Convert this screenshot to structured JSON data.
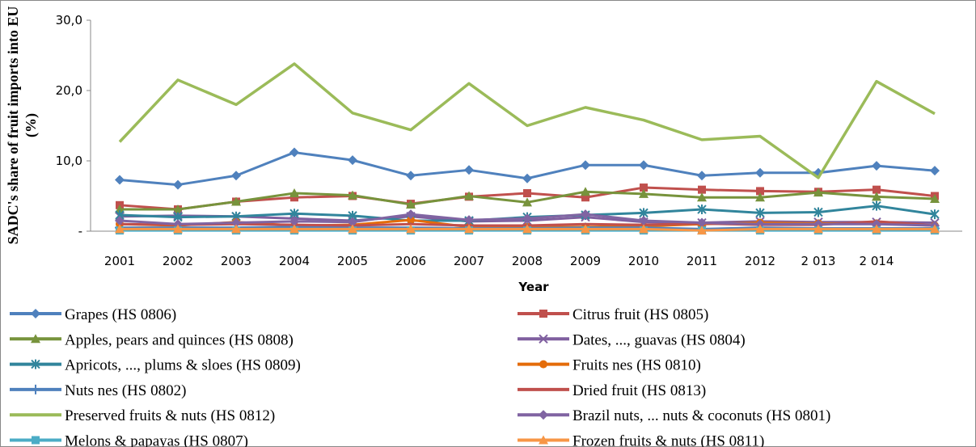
{
  "chart_data": {
    "type": "line",
    "x_label": "Year",
    "y_label": [
      "SADC's share of fruit imports into  EU",
      "(%)"
    ],
    "categories": [
      "2001",
      "2002",
      "2003",
      "2004",
      "2005",
      "2006",
      "2007",
      "2008",
      "2009",
      "2010",
      "2011",
      "2012",
      "2 013",
      "2 014",
      null
    ],
    "ylim": [
      0,
      30
    ],
    "yticks": [
      {
        "value": 0,
        "label": "-"
      },
      {
        "value": 10,
        "label": "10,0"
      },
      {
        "value": 20,
        "label": "20,0"
      },
      {
        "value": 30,
        "label": "30,0"
      }
    ],
    "series": [
      {
        "name": "Grapes  (HS 0806)",
        "color": "#4f81bd",
        "marker": "diamond",
        "values": [
          7.3,
          6.6,
          7.9,
          11.2,
          10.1,
          7.9,
          8.7,
          7.5,
          9.4,
          9.4,
          7.9,
          8.3,
          8.3,
          9.3,
          8.6
        ]
      },
      {
        "name": "Citrus fruit (HS 0805)",
        "color": "#c0504d",
        "marker": "square",
        "values": [
          3.7,
          3.1,
          4.2,
          4.8,
          5.0,
          3.9,
          4.9,
          5.4,
          4.8,
          6.2,
          5.9,
          5.7,
          5.6,
          5.9,
          5.0
        ]
      },
      {
        "name": "Apples, pears and quinces  (HS 0808)",
        "color": "#77933c",
        "marker": "triangle",
        "values": [
          3.1,
          3.1,
          4.2,
          5.4,
          5.1,
          3.8,
          5.0,
          4.1,
          5.6,
          5.3,
          4.8,
          4.8,
          5.5,
          4.9,
          4.6
        ]
      },
      {
        "name": "Dates, ..., guavas  (HS 0804)",
        "color": "#7f5f9f",
        "marker": "x",
        "values": [
          2.1,
          2.2,
          2.1,
          1.8,
          1.5,
          2.1,
          1.4,
          1.5,
          2.0,
          1.3,
          1.2,
          1.4,
          1.3,
          1.3,
          1.2
        ]
      },
      {
        "name": "Apricots, ..., plums & sloes  (HS 0809)",
        "color": "#31859c",
        "marker": "star",
        "values": [
          2.3,
          2.0,
          2.1,
          2.5,
          2.2,
          1.5,
          1.5,
          2.0,
          2.3,
          2.6,
          3.1,
          2.6,
          2.7,
          3.6,
          2.4
        ]
      },
      {
        "name": "Fruits nes  (HS 0810)",
        "color": "#e46c0a",
        "marker": "circle",
        "values": [
          1.0,
          0.8,
          1.3,
          0.8,
          0.9,
          1.6,
          0.6,
          0.6,
          0.6,
          0.7,
          1.0,
          1.2,
          1.1,
          1.1,
          0.8
        ]
      },
      {
        "name": "Nuts nes (HS 0802)",
        "color": "#4f81bd",
        "marker": "plus",
        "values": [
          0.5,
          0.5,
          0.5,
          0.6,
          0.5,
          0.5,
          0.4,
          0.4,
          0.5,
          0.5,
          0.3,
          0.5,
          0.4,
          0.4,
          0.4
        ]
      },
      {
        "name": "Dried fruit  (HS 0813)",
        "color": "#c0504d",
        "marker": "none",
        "values": [
          1.0,
          0.9,
          1.0,
          0.9,
          0.8,
          1.0,
          0.8,
          0.8,
          1.0,
          0.9,
          1.1,
          0.9,
          0.9,
          1.4,
          0.8
        ]
      },
      {
        "name": "Preserved fruits & nuts  (HS 0812)",
        "color": "#9bbb59",
        "marker": "none",
        "values": [
          12.7,
          21.5,
          18.0,
          23.8,
          16.8,
          14.4,
          21.0,
          15.0,
          17.6,
          15.8,
          13.0,
          13.5,
          7.6,
          21.3,
          16.7
        ]
      },
      {
        "name": "Brazil nuts, ... nuts & coconuts (HS 0801)",
        "color": "#8064a2",
        "marker": "diamond",
        "values": [
          1.5,
          1.0,
          1.2,
          1.4,
          1.3,
          2.4,
          1.6,
          1.8,
          2.4,
          1.5,
          1.2,
          1.0,
          1.0,
          1.0,
          0.8
        ]
      },
      {
        "name": "Melons & papayas  (HS 0807)",
        "color": "#4bacc6",
        "marker": "square",
        "values": [
          0.1,
          0.1,
          0.1,
          0.1,
          0.1,
          0.1,
          0.1,
          0.1,
          0.1,
          0.1,
          0.1,
          0.1,
          0.1,
          0.1,
          0.1
        ]
      },
      {
        "name": "Frozen fruits & nuts (HS 0811)",
        "color": "#f79646",
        "marker": "triangle",
        "values": [
          0.3,
          0.3,
          0.3,
          0.3,
          0.3,
          0.3,
          0.3,
          0.3,
          0.3,
          0.3,
          0.1,
          0.3,
          0.3,
          0.3,
          0.3
        ]
      }
    ]
  }
}
